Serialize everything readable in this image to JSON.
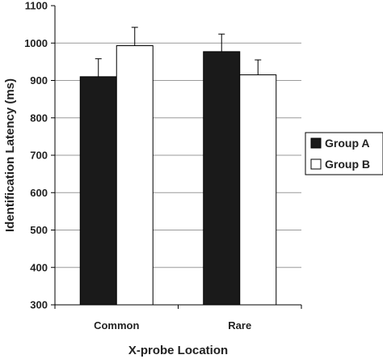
{
  "chart_data": {
    "type": "bar",
    "title": "",
    "xlabel": "X-probe Location",
    "ylabel": "Identification Latency (ms)",
    "ylim": [
      300,
      1100
    ],
    "yticks": [
      "300",
      "400",
      "500",
      "600",
      "700",
      "800",
      "900",
      "1000",
      "1100"
    ],
    "categories": [
      "Common",
      "Rare"
    ],
    "series": [
      {
        "name": "Group A",
        "values": [
          910,
          977
        ],
        "error": [
          48,
          47
        ],
        "color": "#1a1a1a"
      },
      {
        "name": "Group B",
        "values": [
          993,
          915
        ],
        "error": [
          49,
          40
        ],
        "color": "#ffffff"
      }
    ],
    "grid": true,
    "legend_position": "right"
  }
}
